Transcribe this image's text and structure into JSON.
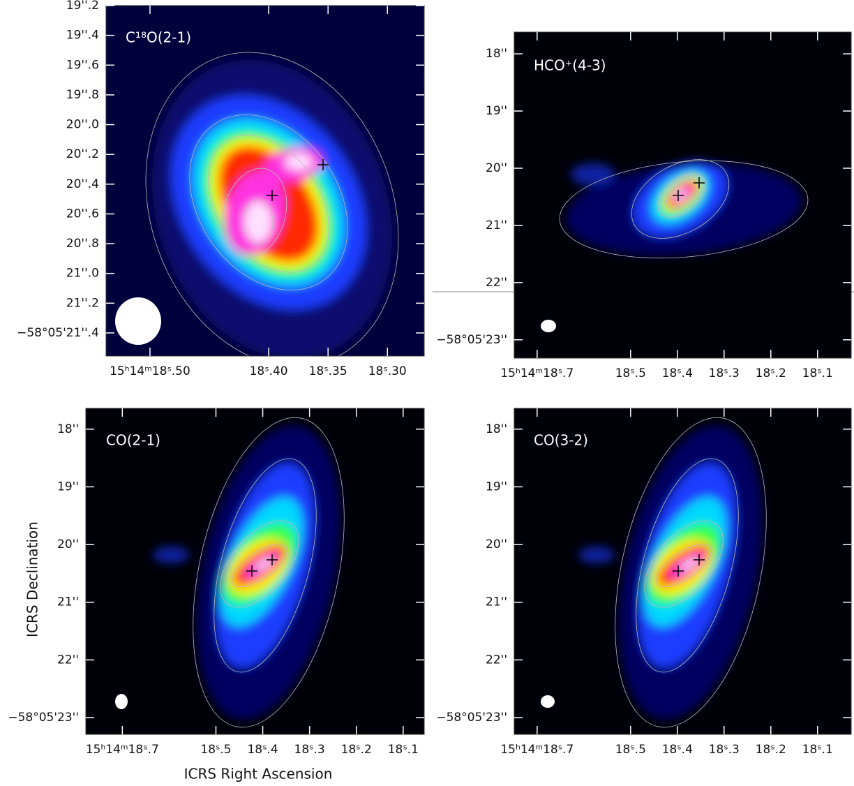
{
  "chart_data": [
    {
      "type": "image",
      "title": "C¹⁸O(2-1)",
      "xlim": [
        18.537,
        18.269
      ],
      "ylim": [
        21.555,
        19.2
      ],
      "xticks": [
        {
          "value": 18.5,
          "label": "15ʰ14ᵐ18ˢ.50"
        },
        {
          "value": 18.4,
          "label": "18ˢ.40"
        },
        {
          "value": 18.35,
          "label": "18ˢ.35"
        },
        {
          "value": 18.3,
          "label": "18ˢ.30"
        }
      ],
      "yticks": [
        {
          "value": 19.2,
          "label": "19''.2"
        },
        {
          "value": 19.4,
          "label": "19''.4"
        },
        {
          "value": 19.6,
          "label": "19''.6"
        },
        {
          "value": 19.8,
          "label": "19''.8"
        },
        {
          "value": 20.0,
          "label": "20''.0"
        },
        {
          "value": 20.2,
          "label": "20''.2"
        },
        {
          "value": 20.4,
          "label": "20''.4"
        },
        {
          "value": 20.6,
          "label": "20''.6"
        },
        {
          "value": 20.8,
          "label": "20''.8"
        },
        {
          "value": 21.0,
          "label": "21''.0"
        },
        {
          "value": 21.2,
          "label": "21''.2"
        },
        {
          "value": 21.4,
          "label": "−58°05'21''.4"
        }
      ]
    },
    {
      "type": "image",
      "title": "HCO⁺(4-3)",
      "xlim": [
        18.749,
        18.028
      ],
      "ylim": [
        23.32,
        17.62
      ],
      "xticks": [
        {
          "value": 18.7,
          "label": "15ʰ14ᵐ18ˢ.7"
        },
        {
          "value": 18.5,
          "label": "18ˢ.5"
        },
        {
          "value": 18.4,
          "label": "18ˢ.4"
        },
        {
          "value": 18.3,
          "label": "18ˢ.3"
        },
        {
          "value": 18.2,
          "label": "18ˢ.2"
        },
        {
          "value": 18.1,
          "label": "18ˢ.1"
        }
      ],
      "yticks": [
        {
          "value": 18,
          "label": "18''"
        },
        {
          "value": 19,
          "label": "19''"
        },
        {
          "value": 20,
          "label": "20''"
        },
        {
          "value": 21,
          "label": "21''"
        },
        {
          "value": 22,
          "label": "22''"
        },
        {
          "value": 23,
          "label": "−58°05'23''"
        }
      ]
    },
    {
      "type": "image",
      "title": "CO(2-1)",
      "xlim": [
        18.778,
        18.055
      ],
      "ylim": [
        23.29,
        17.64
      ],
      "xlabel": "ICRS Right Ascension",
      "ylabel": "ICRS Declination",
      "xticks": [
        {
          "value": 18.7,
          "label": "15ʰ14ᵐ18ˢ.7"
        },
        {
          "value": 18.5,
          "label": "18ˢ.5"
        },
        {
          "value": 18.4,
          "label": "18ˢ.4"
        },
        {
          "value": 18.3,
          "label": "18ˢ.3"
        },
        {
          "value": 18.2,
          "label": "18ˢ.2"
        },
        {
          "value": 18.1,
          "label": "18ˢ.1"
        }
      ],
      "yticks": [
        {
          "value": 18,
          "label": "18''"
        },
        {
          "value": 19,
          "label": "19''"
        },
        {
          "value": 20,
          "label": "20''"
        },
        {
          "value": 21,
          "label": "21''"
        },
        {
          "value": 22,
          "label": "22''"
        },
        {
          "value": 23,
          "label": "−58°05'23''"
        }
      ]
    },
    {
      "type": "image",
      "title": "CO(3-2)",
      "xlim": [
        18.749,
        18.028
      ],
      "ylim": [
        23.29,
        17.64
      ],
      "xticks": [
        {
          "value": 18.7,
          "label": "15ʰ14ᵐ18ˢ.7"
        },
        {
          "value": 18.5,
          "label": "18ˢ.5"
        },
        {
          "value": 18.4,
          "label": "18ˢ.4"
        },
        {
          "value": 18.3,
          "label": "18ˢ.3"
        },
        {
          "value": 18.2,
          "label": "18ˢ.2"
        },
        {
          "value": 18.1,
          "label": "18ˢ.1"
        }
      ],
      "yticks": [
        {
          "value": 18,
          "label": "18''"
        },
        {
          "value": 19,
          "label": "19''"
        },
        {
          "value": 20,
          "label": "20''"
        },
        {
          "value": 21,
          "label": "21''"
        },
        {
          "value": 22,
          "label": "22''"
        },
        {
          "value": 23,
          "label": "−58°05'23''"
        }
      ]
    }
  ]
}
